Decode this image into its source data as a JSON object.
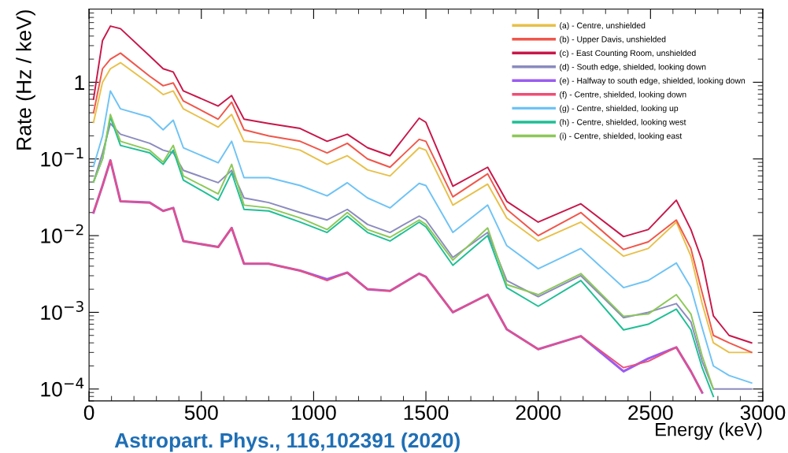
{
  "chart_data": {
    "type": "line",
    "xlabel": "Energy (keV)",
    "ylabel": "Rate (Hz / keV)",
    "annotations": [
      "Astropart. Phys., 116,102391 (2020)"
    ],
    "log": "y",
    "grid": false,
    "legend": "top right",
    "marker": "none",
    "line_style": "solid",
    "xlim": [
      0,
      3000
    ],
    "ylim": [
      7e-05,
      9
    ],
    "xticks": [
      0,
      500,
      1000,
      1500,
      2000,
      2500,
      3000
    ],
    "yticks": [
      {
        "value": 0.0001,
        "label": "10$^{−4}$"
      },
      {
        "value": 0.001,
        "label": "10$^{−3}$"
      },
      {
        "value": 0.01,
        "label": "10$^{−2}$"
      },
      {
        "value": 0.1,
        "label": "10$^{−1}$"
      },
      1
    ],
    "x": [
      20,
      60,
      95,
      140,
      270,
      330,
      375,
      420,
      575,
      635,
      690,
      800,
      940,
      1060,
      1150,
      1240,
      1340,
      1470,
      1500,
      1620,
      1775,
      1860,
      2000,
      2190,
      2380,
      2490,
      2615,
      2680,
      2730,
      2780,
      2850,
      2950
    ],
    "series": [
      {
        "name": "(a) - Centre, unshielded",
        "color": "#e8c04a",
        "values": [
          0.3,
          1.0,
          1.5,
          1.8,
          0.95,
          0.69,
          0.77,
          0.45,
          0.26,
          0.38,
          0.17,
          0.16,
          0.13,
          0.085,
          0.11,
          0.072,
          0.06,
          0.14,
          0.13,
          0.025,
          0.047,
          0.017,
          0.0085,
          0.015,
          0.0054,
          0.0068,
          0.015,
          0.0054,
          0.0013,
          0.0004,
          0.0003,
          0.0003
        ]
      },
      {
        "name": "(b) - Upper Davis, unshielded",
        "color": "#f0564a",
        "values": [
          0.4,
          1.5,
          2.0,
          2.4,
          1.2,
          0.9,
          0.98,
          0.57,
          0.33,
          0.55,
          0.24,
          0.2,
          0.17,
          0.12,
          0.16,
          0.1,
          0.078,
          0.18,
          0.17,
          0.032,
          0.064,
          0.022,
          0.01,
          0.02,
          0.0066,
          0.0083,
          0.016,
          0.0068,
          0.0018,
          0.0005,
          0.0004,
          0.0003
        ]
      },
      {
        "name": "(c) - East Counting Room, unshielded",
        "color": "#c8174a",
        "values": [
          0.6,
          3.5,
          5.4,
          5.0,
          2.2,
          1.5,
          1.36,
          0.77,
          0.49,
          0.67,
          0.33,
          0.29,
          0.25,
          0.17,
          0.21,
          0.14,
          0.11,
          0.34,
          0.3,
          0.044,
          0.078,
          0.028,
          0.015,
          0.026,
          0.0097,
          0.012,
          0.029,
          0.012,
          0.0047,
          0.0009,
          0.0005,
          0.0004
        ]
      },
      {
        "name": "(d) - South edge, shielded, looking down",
        "color": "#8b8bbf",
        "values": [
          0.05,
          0.12,
          0.29,
          0.21,
          0.16,
          0.13,
          0.12,
          0.071,
          0.049,
          0.071,
          0.031,
          0.027,
          0.02,
          0.016,
          0.022,
          0.014,
          0.011,
          0.018,
          0.016,
          0.0052,
          0.011,
          0.0026,
          0.0016,
          0.003,
          0.00085,
          0.001,
          0.0013,
          0.00075,
          0.00023,
          0.0001,
          0.0001,
          0.0001
        ]
      },
      {
        "name": "(e) - Halfway to south edge, shielded, looking down",
        "color": "#9a5cf0",
        "values": [
          0.02,
          0.045,
          0.096,
          0.028,
          0.027,
          0.021,
          0.023,
          0.0085,
          0.0071,
          0.0126,
          0.0043,
          0.0043,
          0.0035,
          0.0027,
          0.0033,
          0.002,
          0.0019,
          0.0032,
          0.0029,
          0.001,
          0.0017,
          0.0006,
          0.00033,
          0.00049,
          0.00017,
          0.00025,
          0.00035,
          0.00017,
          9e-05,
          null,
          null,
          null
        ]
      },
      {
        "name": "(f) - Centre, shielded, looking down",
        "color": "#ee4f75",
        "values": [
          0.02,
          0.045,
          0.096,
          0.028,
          0.027,
          0.021,
          0.023,
          0.0085,
          0.0071,
          0.0126,
          0.0043,
          0.0043,
          0.0035,
          0.0026,
          0.0033,
          0.002,
          0.0019,
          0.0032,
          0.0029,
          0.001,
          0.0017,
          0.0006,
          0.00033,
          0.00049,
          0.00019,
          0.00023,
          0.00035,
          0.00017,
          9e-05,
          null,
          null,
          null
        ]
      },
      {
        "name": "(g) - Centre, shielded, looking up",
        "color": "#6ec3f5",
        "values": [
          0.08,
          0.2,
          0.77,
          0.45,
          0.35,
          0.24,
          0.32,
          0.14,
          0.089,
          0.17,
          0.057,
          0.057,
          0.045,
          0.033,
          0.049,
          0.031,
          0.023,
          0.048,
          0.045,
          0.011,
          0.025,
          0.0074,
          0.0037,
          0.0068,
          0.0021,
          0.0026,
          0.0044,
          0.0021,
          0.00063,
          0.0002,
          0.00015,
          0.00012
        ]
      },
      {
        "name": "(h) - Centre, shielded, looking west",
        "color": "#1fbf95",
        "values": [
          0.05,
          0.1,
          0.35,
          0.15,
          0.12,
          0.085,
          0.13,
          0.053,
          0.029,
          0.066,
          0.022,
          0.021,
          0.015,
          0.011,
          0.018,
          0.011,
          0.0085,
          0.015,
          0.013,
          0.0041,
          0.01,
          0.0021,
          0.0012,
          0.0026,
          0.00059,
          0.0007,
          0.0011,
          0.00059,
          0.00019,
          8e-05,
          null,
          null
        ]
      },
      {
        "name": "(i) - Centre, shielded, looking east",
        "color": "#8cc858",
        "values": [
          0.05,
          0.1,
          0.38,
          0.17,
          0.13,
          0.091,
          0.15,
          0.06,
          0.035,
          0.085,
          0.025,
          0.023,
          0.017,
          0.012,
          0.02,
          0.012,
          0.0095,
          0.016,
          0.014,
          0.0048,
          0.0126,
          0.0023,
          0.0017,
          0.0032,
          0.00089,
          0.00095,
          0.0017,
          0.00095,
          0.00027,
          0.0001,
          null,
          null
        ]
      }
    ]
  }
}
